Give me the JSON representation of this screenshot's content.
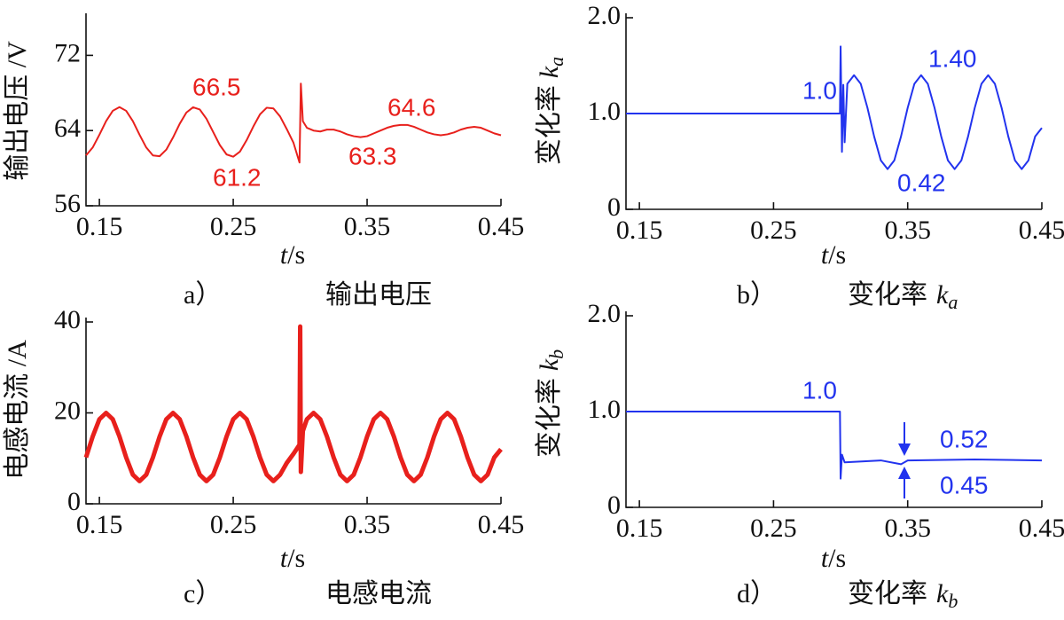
{
  "chart_data": [
    {
      "type": "line",
      "caption": {
        "letter": "a）",
        "text": "输出电压"
      },
      "ylabel": {
        "text": "输出电压 /V"
      },
      "xlabel": {
        "var": "t",
        "unit": "/s"
      },
      "color": "#e8201c",
      "xlim": [
        0.14,
        0.45
      ],
      "xticks": [
        0.15,
        0.25,
        0.35,
        0.45
      ],
      "ylim": [
        56,
        76
      ],
      "yticks": [
        56,
        64,
        72
      ],
      "x": [
        0.14,
        0.145,
        0.15,
        0.155,
        0.16,
        0.165,
        0.17,
        0.175,
        0.18,
        0.185,
        0.19,
        0.195,
        0.2,
        0.205,
        0.21,
        0.215,
        0.22,
        0.225,
        0.23,
        0.235,
        0.24,
        0.245,
        0.25,
        0.255,
        0.26,
        0.265,
        0.27,
        0.275,
        0.28,
        0.285,
        0.29,
        0.295,
        0.2995,
        0.3005,
        0.302,
        0.305,
        0.31,
        0.315,
        0.32,
        0.325,
        0.33,
        0.335,
        0.34,
        0.345,
        0.35,
        0.355,
        0.36,
        0.365,
        0.37,
        0.375,
        0.38,
        0.385,
        0.39,
        0.395,
        0.4,
        0.405,
        0.41,
        0.415,
        0.42,
        0.425,
        0.43,
        0.435,
        0.44,
        0.445,
        0.45
      ],
      "values": [
        61.35,
        62.2,
        63.55,
        65.0,
        66.1,
        66.5,
        66.1,
        65.0,
        63.55,
        62.2,
        61.35,
        61.27,
        61.97,
        63.26,
        64.72,
        65.92,
        66.48,
        66.24,
        65.25,
        63.85,
        62.45,
        61.46,
        61.22,
        61.76,
        62.98,
        64.43,
        65.73,
        66.43,
        66.35,
        65.5,
        64.15,
        62.7,
        60.6,
        69.0,
        65.0,
        64.3,
        64.0,
        63.9,
        64.1,
        64.1,
        63.9,
        63.6,
        63.4,
        63.3,
        63.4,
        63.7,
        64.0,
        64.3,
        64.5,
        64.6,
        64.6,
        64.4,
        64.1,
        63.8,
        63.6,
        63.5,
        63.6,
        63.8,
        64.1,
        64.3,
        64.4,
        64.3,
        64.0,
        63.7,
        63.5
      ],
      "annotations": [
        "66.5",
        "61.2",
        "64.6",
        "63.3"
      ]
    },
    {
      "type": "line",
      "caption": {
        "letter": "b）",
        "text": "变化率",
        "var": "k",
        "sub": "a"
      },
      "ylabel": {
        "text": "变化率",
        "var": "k",
        "sub": "a"
      },
      "xlabel": {
        "var": "t",
        "unit": "/s"
      },
      "color": "#2233ee",
      "xlim": [
        0.14,
        0.45
      ],
      "xticks": [
        0.15,
        0.25,
        0.35,
        0.45
      ],
      "ylim": [
        0,
        2
      ],
      "yticks": [
        0,
        {
          "value": 1,
          "label": "1.0"
        },
        {
          "value": 2,
          "label": "2.0"
        }
      ],
      "x": [
        0.14,
        0.2995,
        0.3,
        0.301,
        0.302,
        0.303,
        0.305,
        0.31,
        0.315,
        0.32,
        0.325,
        0.33,
        0.335,
        0.34,
        0.345,
        0.35,
        0.355,
        0.36,
        0.365,
        0.37,
        0.375,
        0.38,
        0.385,
        0.39,
        0.395,
        0.4,
        0.405,
        0.41,
        0.415,
        0.42,
        0.425,
        0.43,
        0.435,
        0.44,
        0.445,
        0.45
      ],
      "values": [
        1.0,
        1.0,
        1.7,
        0.6,
        1.3,
        0.7,
        1.31,
        1.4,
        1.31,
        1.06,
        0.76,
        0.51,
        0.42,
        0.51,
        0.76,
        1.06,
        1.31,
        1.4,
        1.31,
        1.06,
        0.76,
        0.51,
        0.42,
        0.51,
        0.76,
        1.06,
        1.31,
        1.4,
        1.31,
        1.06,
        0.76,
        0.51,
        0.42,
        0.51,
        0.76,
        0.85
      ],
      "annotations": [
        "1.0",
        "1.40",
        "0.42"
      ]
    },
    {
      "type": "line",
      "caption": {
        "letter": "c）",
        "text": "电感电流"
      },
      "ylabel": {
        "text": "电感电流 /A"
      },
      "xlabel": {
        "var": "t",
        "unit": "/s"
      },
      "color": "#e8201c",
      "xlim": [
        0.14,
        0.45
      ],
      "xticks": [
        0.15,
        0.25,
        0.35,
        0.45
      ],
      "ylim": [
        0,
        40
      ],
      "yticks": [
        0,
        20,
        40
      ],
      "x": [
        0.14,
        0.145,
        0.15,
        0.155,
        0.16,
        0.165,
        0.17,
        0.175,
        0.18,
        0.185,
        0.19,
        0.195,
        0.2,
        0.205,
        0.21,
        0.215,
        0.22,
        0.225,
        0.23,
        0.235,
        0.24,
        0.245,
        0.25,
        0.255,
        0.26,
        0.265,
        0.27,
        0.275,
        0.28,
        0.285,
        0.29,
        0.295,
        0.2995,
        0.3,
        0.3005,
        0.302,
        0.305,
        0.31,
        0.315,
        0.32,
        0.325,
        0.33,
        0.335,
        0.34,
        0.345,
        0.35,
        0.355,
        0.36,
        0.365,
        0.37,
        0.375,
        0.38,
        0.385,
        0.39,
        0.395,
        0.4,
        0.405,
        0.41,
        0.415,
        0.42,
        0.425,
        0.43,
        0.435,
        0.44,
        0.445,
        0.45
      ],
      "values": [
        10.2,
        14.8,
        18.6,
        20,
        18.6,
        14.8,
        10.2,
        6.4,
        5.0,
        6.4,
        10.2,
        14.8,
        18.6,
        20,
        18.6,
        14.8,
        10.2,
        6.4,
        5.0,
        6.4,
        10.2,
        14.8,
        18.6,
        20,
        18.6,
        14.8,
        10.2,
        6.4,
        5.0,
        6.4,
        9.0,
        11.0,
        13,
        39,
        7,
        16,
        18.6,
        20,
        18.6,
        14.8,
        10.2,
        6.4,
        5.0,
        6.4,
        10.2,
        14.8,
        18.6,
        20,
        18.6,
        14.8,
        10.2,
        6.4,
        5.0,
        6.4,
        10.2,
        14.8,
        18.6,
        20,
        18.6,
        14.8,
        10.2,
        6.4,
        5.0,
        6.4,
        10.2,
        12.0
      ]
    },
    {
      "type": "line",
      "caption": {
        "letter": "d）",
        "text": "变化率",
        "var": "k",
        "sub": "b"
      },
      "ylabel": {
        "text": "变化率",
        "var": "k",
        "sub": "b"
      },
      "xlabel": {
        "var": "t",
        "unit": "/s"
      },
      "color": "#2233ee",
      "xlim": [
        0.14,
        0.45
      ],
      "xticks": [
        0.15,
        0.25,
        0.35,
        0.45
      ],
      "ylim": [
        0,
        2
      ],
      "yticks": [
        0,
        {
          "value": 1,
          "label": "1.0"
        },
        {
          "value": 2,
          "label": "2.0"
        }
      ],
      "x": [
        0.14,
        0.2995,
        0.3,
        0.301,
        0.303,
        0.33,
        0.345,
        0.35,
        0.4,
        0.45
      ],
      "values": [
        1.0,
        1.0,
        0.3,
        0.55,
        0.47,
        0.49,
        0.45,
        0.49,
        0.5,
        0.49
      ],
      "annotations": [
        "1.0",
        "0.52",
        "0.45"
      ]
    }
  ]
}
